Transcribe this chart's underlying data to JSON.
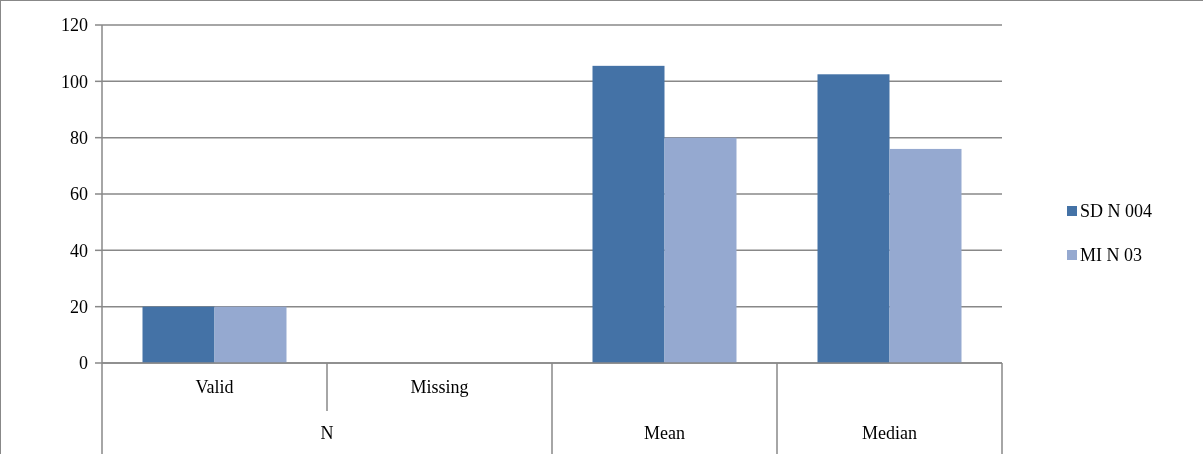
{
  "chart_data": {
    "type": "bar",
    "categories": [
      "Valid",
      "Missing",
      "Mean",
      "Median"
    ],
    "series": [
      {
        "name": "SD N 004",
        "color": "#4472a6",
        "values": [
          20,
          0,
          105.5,
          102.5
        ]
      },
      {
        "name": "MI N 03",
        "color": "#95a9d0",
        "values": [
          20,
          0,
          80,
          76
        ]
      }
    ],
    "ylim": [
      0,
      120
    ],
    "yticks": [
      0,
      20,
      40,
      60,
      80,
      100,
      120
    ],
    "grid": "y",
    "legend": "right",
    "annotations": [
      "N"
    ]
  }
}
